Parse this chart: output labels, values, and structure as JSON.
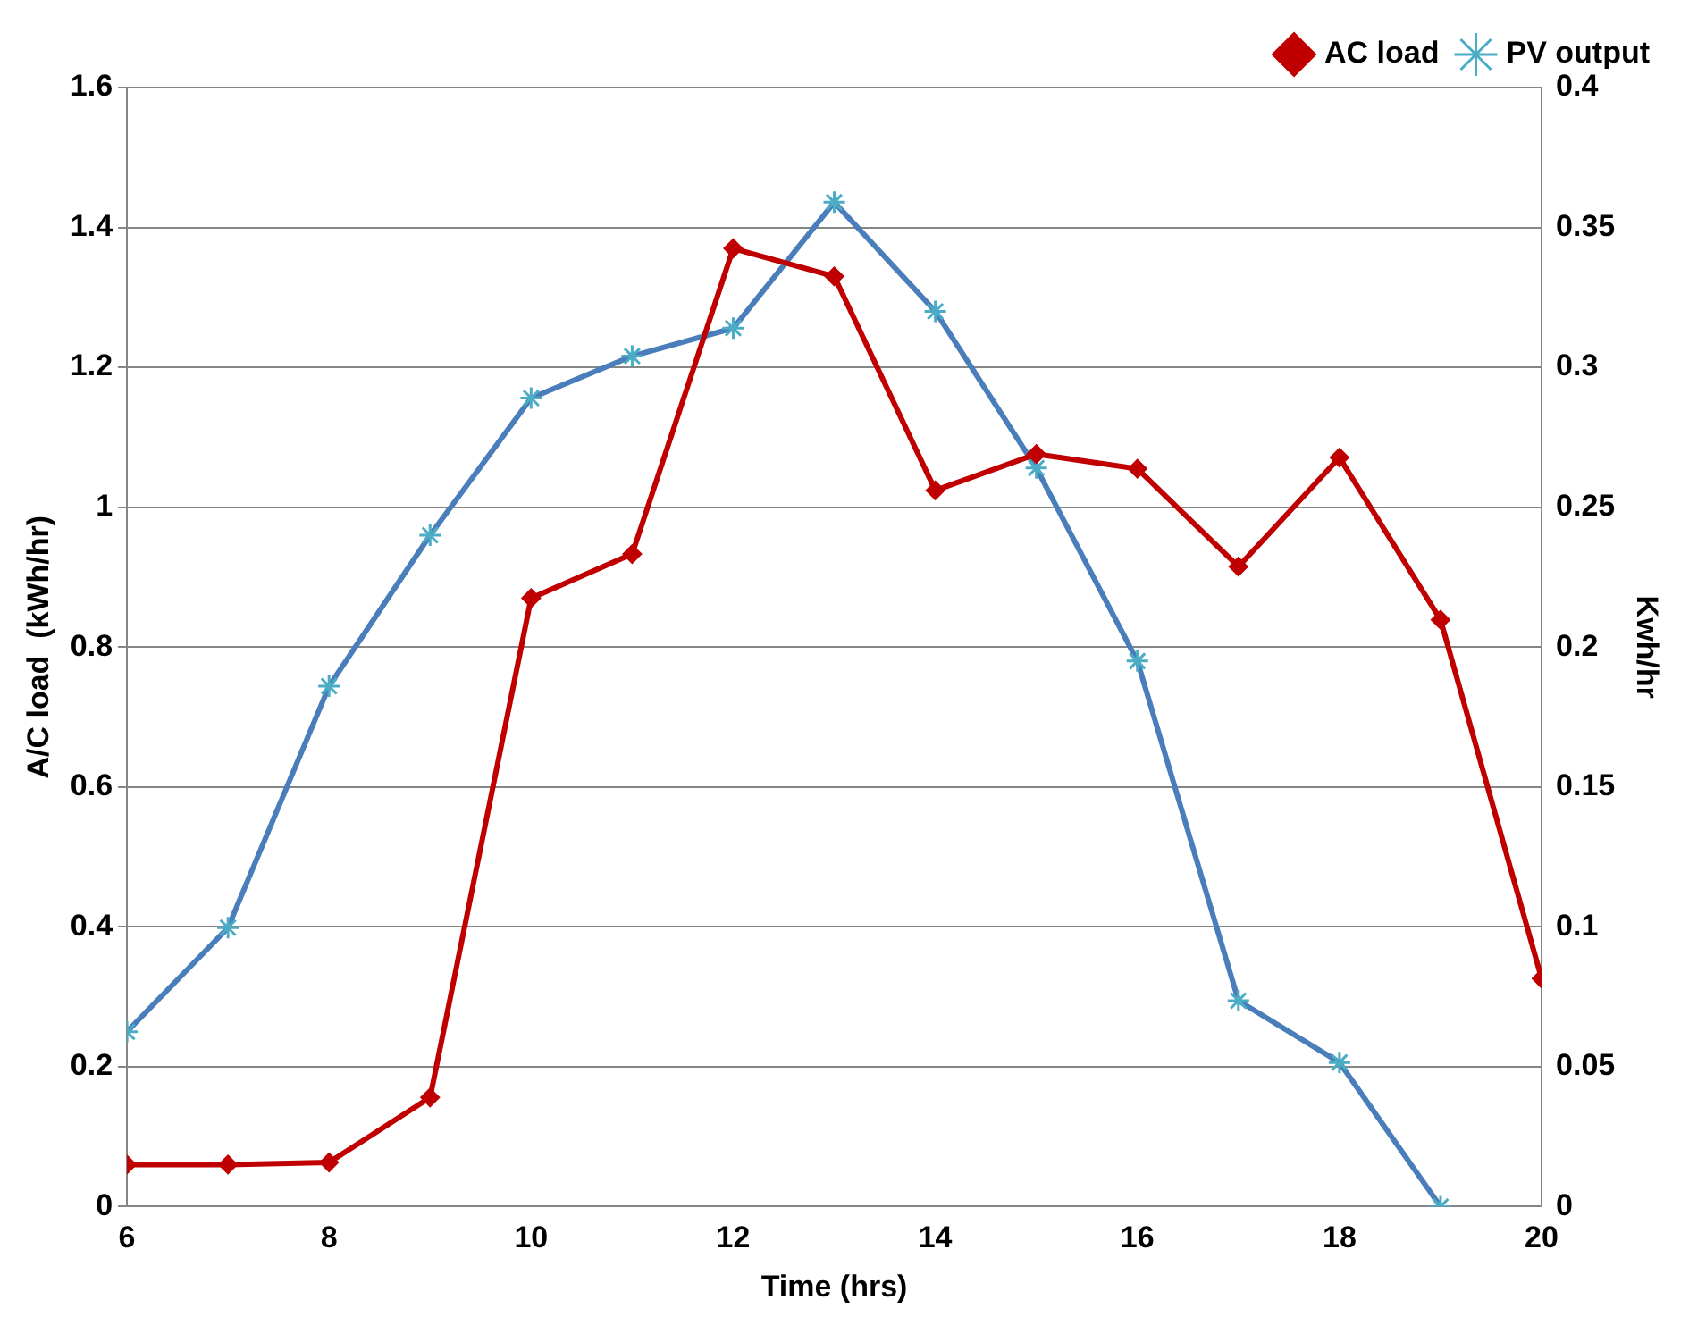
{
  "chart_data": {
    "type": "line",
    "xlabel": "Time (hrs)",
    "ylabel": "A/C load  (kWh/hr)",
    "y2label": "Kwh/hr",
    "x": [
      6,
      7,
      8,
      9,
      10,
      11,
      12,
      13,
      14,
      15,
      16,
      17,
      18,
      19,
      20
    ],
    "series": [
      {
        "name": "AC load",
        "color": "#c00000",
        "marker": "diamond",
        "values": [
          0.06,
          0.06,
          0.063,
          0.156,
          0.87,
          0.933,
          1.37,
          1.33,
          1.024,
          1.076,
          1.055,
          0.915,
          1.071,
          0.839,
          0.326
        ]
      },
      {
        "name": "PV output",
        "color": "#4a7ebb",
        "marker": "cross",
        "axis": "y2",
        "values": [
          0.0625,
          0.0997,
          0.186,
          0.24,
          0.289,
          0.304,
          0.314,
          0.359,
          0.32,
          0.264,
          0.195,
          0.0736,
          0.0515,
          0,
          null
        ]
      }
    ],
    "xlim": [
      6,
      20
    ],
    "xticks": [
      6,
      8,
      10,
      12,
      14,
      16,
      18,
      20
    ],
    "ylim": [
      0,
      1.6
    ],
    "yticks": [
      0,
      0.2,
      0.4,
      0.6,
      0.8,
      1,
      1.2,
      1.4,
      1.6
    ],
    "y2lim": [
      0,
      0.4
    ],
    "y2ticks": [
      0,
      0.05,
      0.1,
      0.15,
      0.2,
      0.25,
      0.3,
      0.35,
      0.4
    ],
    "grid": "y",
    "legend": "top right",
    "line_style": "solid"
  }
}
